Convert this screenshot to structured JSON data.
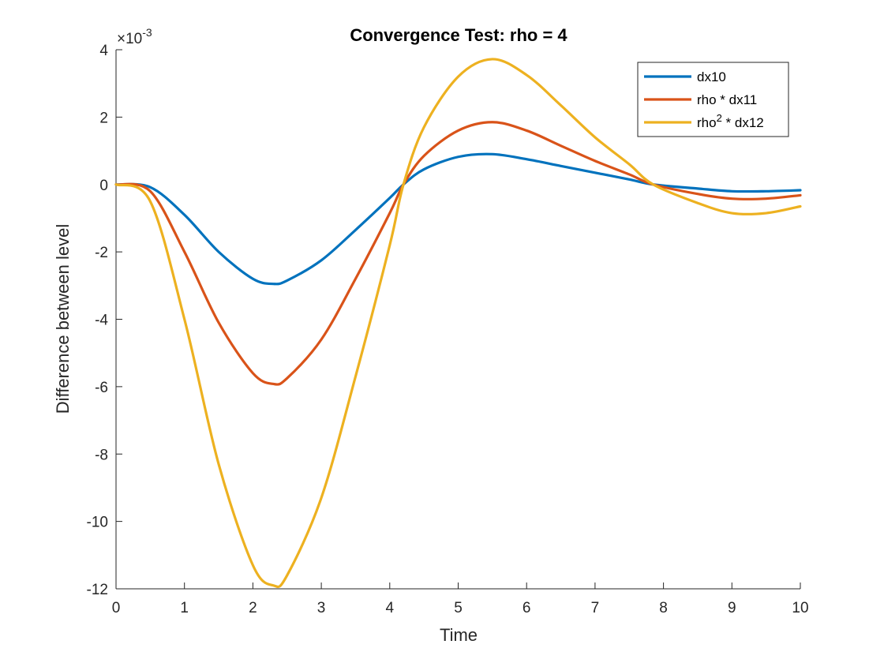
{
  "chart_data": {
    "type": "line",
    "title": "Convergence Test: rho = 4",
    "xlabel": "Time",
    "ylabel": "Difference between level",
    "xlim": [
      0,
      10
    ],
    "ylim": [
      -12,
      4
    ],
    "xticks": [
      "0",
      "1",
      "2",
      "3",
      "4",
      "5",
      "6",
      "7",
      "8",
      "9",
      "10"
    ],
    "yticks": [
      "4",
      "2",
      "0",
      "-2",
      "-4",
      "-6",
      "-8",
      "-10",
      "-12"
    ],
    "y_exponent": {
      "base": "×10",
      "power": "-3"
    },
    "grid": false,
    "legend_position": "top-right",
    "x": [
      0,
      0.5,
      1,
      1.5,
      2,
      2.3,
      2.5,
      3,
      3.5,
      4,
      4.2,
      4.5,
      5,
      5.5,
      6,
      6.5,
      7,
      7.5,
      7.85,
      8.5,
      9,
      9.5,
      10
    ],
    "series": [
      {
        "name": "dx10",
        "legend": {
          "main": "dx10",
          "sup": "",
          "suffix": ""
        },
        "color": "#0072BD",
        "values": [
          0,
          -0.08,
          -0.9,
          -2.0,
          -2.8,
          -2.95,
          -2.85,
          -2.25,
          -1.35,
          -0.4,
          0,
          0.45,
          0.82,
          0.9,
          0.75,
          0.55,
          0.35,
          0.15,
          0,
          -0.12,
          -0.2,
          -0.2,
          -0.17
        ]
      },
      {
        "name": "rho * dx11",
        "legend": {
          "main": "rho * dx11",
          "sup": "",
          "suffix": ""
        },
        "color": "#D95319",
        "values": [
          0,
          -0.2,
          -2.0,
          -4.1,
          -5.6,
          -5.92,
          -5.75,
          -4.6,
          -2.8,
          -0.85,
          0,
          0.85,
          1.6,
          1.85,
          1.6,
          1.15,
          0.7,
          0.3,
          0,
          -0.28,
          -0.42,
          -0.42,
          -0.32
        ]
      },
      {
        "name": "rho^2 * dx12",
        "legend": {
          "main": "rho",
          "sup": "2",
          "suffix": " * dx12"
        },
        "color": "#EDB120",
        "values": [
          0,
          -0.5,
          -4.0,
          -8.3,
          -11.3,
          -11.9,
          -11.6,
          -9.3,
          -5.7,
          -1.8,
          0,
          1.7,
          3.2,
          3.72,
          3.25,
          2.35,
          1.4,
          0.6,
          0,
          -0.55,
          -0.85,
          -0.85,
          -0.65
        ]
      }
    ]
  }
}
